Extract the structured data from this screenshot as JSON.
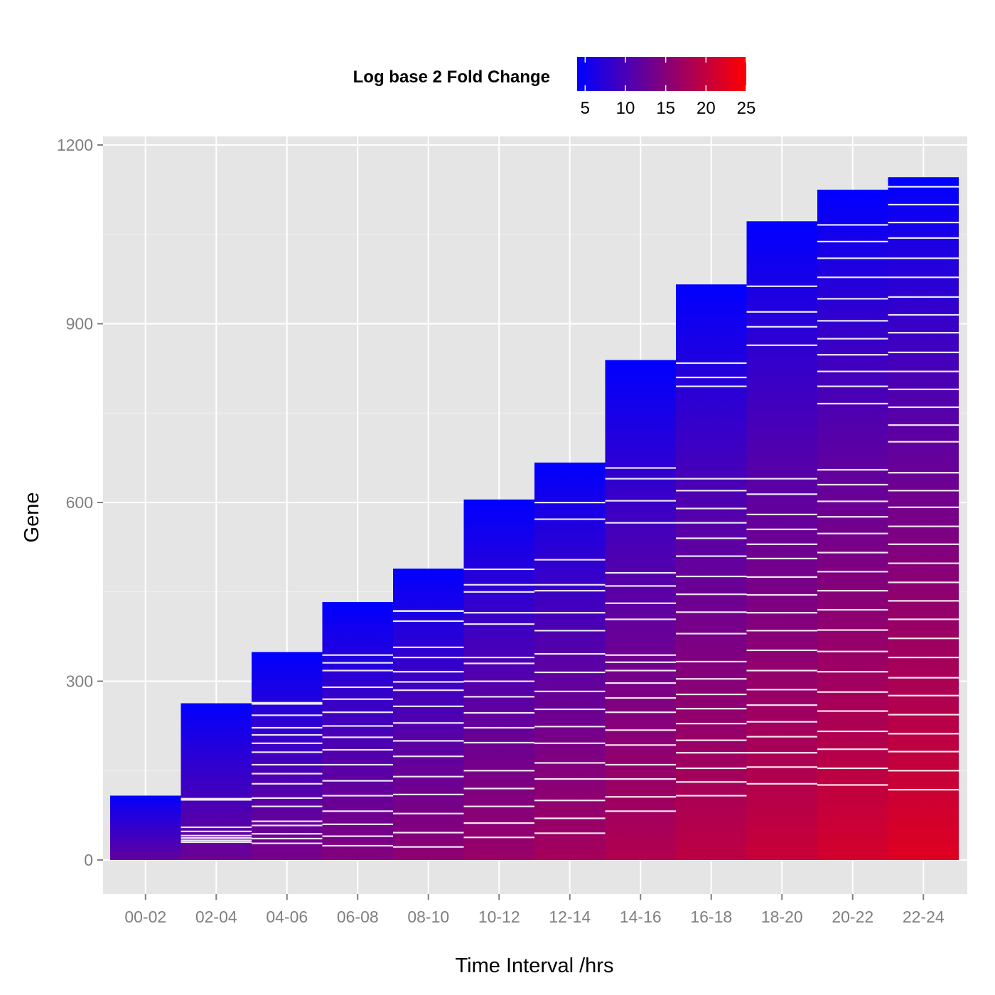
{
  "chart_data": {
    "type": "heatmap",
    "xlabel": "Time Interval /hrs",
    "ylabel": "Gene",
    "categories": [
      "00-02",
      "02-04",
      "04-06",
      "06-08",
      "08-10",
      "10-12",
      "12-14",
      "14-16",
      "16-18",
      "18-20",
      "20-22",
      "22-24"
    ],
    "gene_counts": [
      108,
      263,
      349,
      433,
      489,
      605,
      667,
      839,
      966,
      1072,
      1125,
      1146
    ],
    "row_gaps": [
      {
        "interval": "02-04",
        "genes": [
          103,
          101,
          55,
          48,
          41,
          37,
          33,
          30
        ]
      },
      {
        "interval": "04-06",
        "genes": [
          264,
          262,
          243,
          222,
          210,
          196,
          181,
          160,
          145,
          128,
          104,
          90,
          65,
          58,
          44,
          36,
          28
        ]
      },
      {
        "interval": "06-08",
        "genes": [
          344,
          331,
          318,
          290,
          270,
          248,
          225,
          206,
          185,
          160,
          133,
          108,
          82,
          60,
          40,
          24
        ]
      },
      {
        "interval": "08-10",
        "genes": [
          418,
          418,
          401,
          357,
          340,
          316,
          299,
          285,
          258,
          230,
          200,
          174,
          140,
          110,
          78,
          46,
          22
        ]
      },
      {
        "interval": "10-12",
        "genes": [
          488,
          462,
          450,
          415,
          396,
          340,
          330,
          300,
          274,
          247,
          222,
          197,
          150,
          120,
          90,
          62,
          38
        ]
      },
      {
        "interval": "12-14",
        "genes": [
          600,
          572,
          504,
          462,
          452,
          415,
          385,
          346,
          315,
          283,
          253,
          224,
          196,
          163,
          136,
          100,
          70,
          45
        ]
      },
      {
        "interval": "14-16",
        "genes": [
          658,
          640,
          603,
          566,
          482,
          460,
          431,
          404,
          344,
          332,
          318,
          297,
          272,
          248,
          218,
          193,
          160,
          136,
          106,
          82
        ]
      },
      {
        "interval": "16-18",
        "genes": [
          834,
          810,
          795,
          640,
          620,
          590,
          566,
          540,
          510,
          476,
          446,
          416,
          380,
          333,
          304,
          278,
          254,
          229,
          201,
          180,
          154,
          131,
          108
        ]
      },
      {
        "interval": "18-20",
        "genes": [
          963,
          920,
          895,
          864,
          640,
          614,
          580,
          555,
          530,
          506,
          475,
          445,
          415,
          385,
          352,
          318,
          286,
          260,
          232,
          207,
          180,
          156,
          128
        ]
      },
      {
        "interval": "20-22",
        "genes": [
          1066,
          1038,
          1010,
          978,
          942,
          905,
          875,
          848,
          820,
          795,
          766,
          655,
          630,
          602,
          576,
          548,
          516,
          484,
          452,
          420,
          386,
          350,
          316,
          282,
          250,
          216,
          186,
          154,
          126
        ]
      },
      {
        "interval": "22-24",
        "genes": [
          1130,
          1100,
          1070,
          1044,
          1010,
          978,
          945,
          915,
          885,
          852,
          820,
          790,
          760,
          730,
          702,
          650,
          620,
          592,
          560,
          530,
          498,
          466,
          435,
          404,
          372,
          340,
          306,
          276,
          244,
          212,
          182,
          150,
          118
        ]
      }
    ],
    "xlim": [
      "00-02",
      "22-24"
    ],
    "ylim": [
      -120,
      1200
    ],
    "yticks": [
      0,
      300,
      600,
      900,
      1200
    ],
    "grid": true,
    "legend": {
      "title": "Log base 2 Fold Change",
      "placement": "top",
      "range": [
        4,
        25
      ],
      "ticks": [
        5,
        10,
        15,
        20,
        25
      ],
      "colors": [
        "#0000ff",
        "#ff0000"
      ]
    },
    "colors": {
      "panel_background": "#e5e5e5",
      "grid_major": "#ffffff",
      "grid_minor": "#f2f2f2",
      "low": "#0000ff",
      "high": "#ff0000"
    }
  }
}
